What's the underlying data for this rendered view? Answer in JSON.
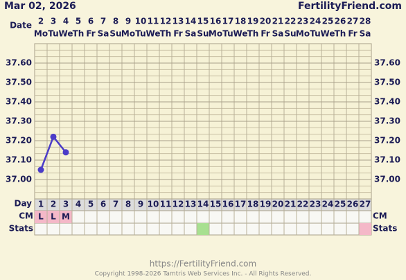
{
  "header": {
    "date": "Mar 02, 2026",
    "site": "FertilityFriend.com"
  },
  "chart_data": {
    "type": "line",
    "date_label": "Date",
    "day_label": "Day",
    "cm_label": "CM",
    "stats_label": "Stats",
    "dates": [
      "2",
      "3",
      "4",
      "5",
      "6",
      "7",
      "8",
      "9",
      "10",
      "11",
      "12",
      "13",
      "14",
      "15",
      "16",
      "17",
      "18",
      "19",
      "20",
      "21",
      "22",
      "23",
      "24",
      "25",
      "26",
      "27",
      "28"
    ],
    "weekdays": [
      "Mo",
      "Tu",
      "We",
      "Th",
      "Fr",
      "Sa",
      "Su",
      "Mo",
      "Tu",
      "We",
      "Th",
      "Fr",
      "Sa",
      "Su",
      "Mo",
      "Tu",
      "We",
      "Th",
      "Fr",
      "Sa",
      "Su",
      "Mo",
      "Tu",
      "We",
      "Th",
      "Fr",
      "Sa"
    ],
    "x": [
      1,
      2,
      3,
      4,
      5,
      6,
      7,
      8,
      9,
      10,
      11,
      12,
      13,
      14,
      15,
      16,
      17,
      18,
      19,
      20,
      21,
      22,
      23,
      24,
      25,
      26,
      27
    ],
    "series": [
      {
        "color": "#4b3cc8",
        "values": [
          37.05,
          37.22,
          37.14,
          null,
          null,
          null,
          null,
          null,
          null,
          null,
          null,
          null,
          null,
          null,
          null,
          null,
          null,
          null,
          null,
          null,
          null,
          null,
          null,
          null,
          null,
          null,
          null
        ]
      }
    ],
    "cm": [
      "L",
      "L",
      "M",
      null,
      null,
      null,
      null,
      null,
      null,
      null,
      null,
      null,
      null,
      null,
      null,
      null,
      null,
      null,
      null,
      null,
      null,
      null,
      null,
      null,
      null,
      null,
      null
    ],
    "ylim": [
      36.9,
      37.7
    ],
    "yticks": [
      {
        "value": 37,
        "label": "37.00"
      },
      {
        "value": 37.1,
        "label": "37.10"
      },
      {
        "value": 37.2,
        "label": "37.20"
      },
      {
        "value": 37.3,
        "label": "37.30"
      },
      {
        "value": 37.4,
        "label": "37.40"
      },
      {
        "value": 37.5,
        "label": "37.50"
      },
      {
        "value": 37.6,
        "label": "37.60"
      }
    ],
    "grid": true
  },
  "footer": {
    "url": "https://FertilityFriend.com",
    "copyright": "Copyright 1998-2026 Tamtris Web Services Inc. - All Rights Reserved."
  }
}
